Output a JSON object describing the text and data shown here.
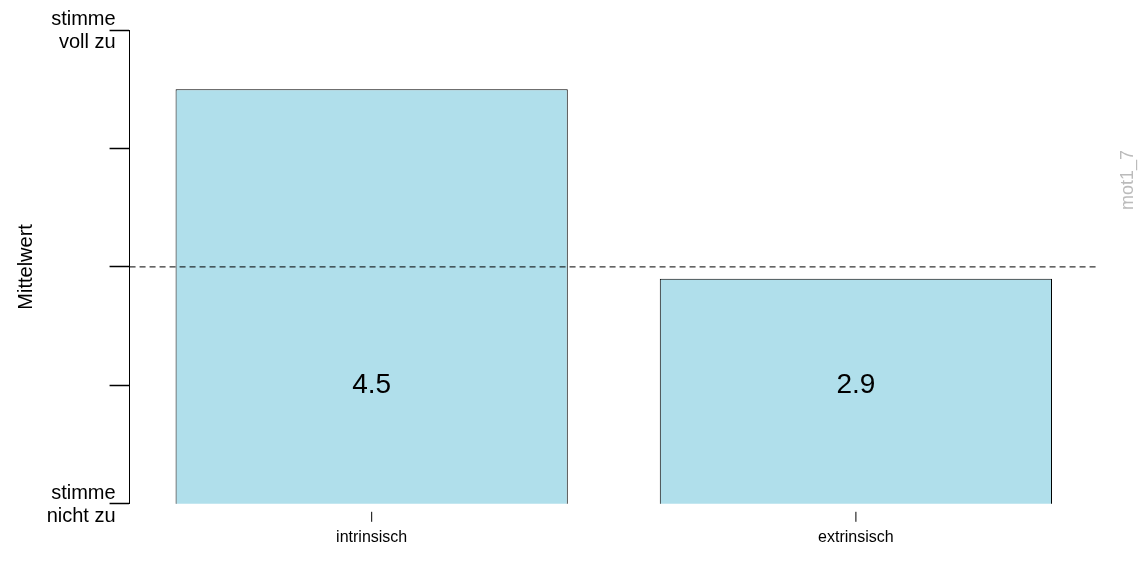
{
  "chart_data": {
    "type": "bar",
    "ylabel": "Mittelwert",
    "categories": [
      "intrinsisch",
      "extrinsisch"
    ],
    "values": [
      4.5,
      2.9
    ],
    "color": "#b0dfeb",
    "data_labels": true,
    "ylim": [
      1,
      5
    ],
    "ref_lines": [
      {
        "axis": "y",
        "value": 3,
        "line_style": "dashed",
        "color": "#000000"
      }
    ],
    "annotations": [
      "stimme nicht zu",
      "stimme voll zu",
      "mot1_7"
    ],
    "grid": false,
    "legend": false
  }
}
